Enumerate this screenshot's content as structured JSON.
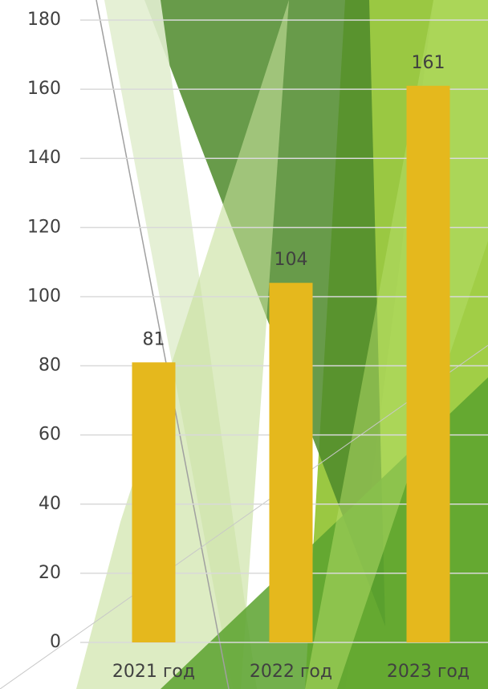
{
  "chart_data": {
    "type": "bar",
    "categories": [
      "2021 год",
      "2022 год",
      "2023 год"
    ],
    "values": [
      81,
      104,
      161
    ],
    "color": "#e5b81d",
    "ylim": [
      0,
      180
    ],
    "yticks": [
      0,
      20,
      40,
      60,
      80,
      100,
      120,
      140,
      160,
      180
    ],
    "grid": true
  }
}
